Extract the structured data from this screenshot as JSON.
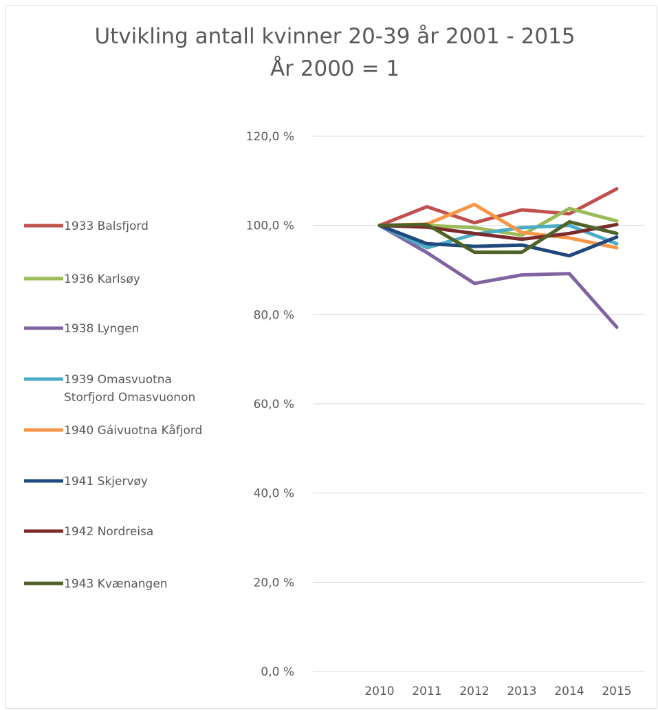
{
  "chart_data": {
    "type": "line",
    "title": "Utvikling antall kvinner 20-39 år 2001 - 2015",
    "subtitle": "År 2000 = 1",
    "categories": [
      "2010",
      "2011",
      "2012",
      "2013",
      "2014",
      "2015"
    ],
    "ylim": [
      0,
      120
    ],
    "yticks": [
      0,
      20,
      40,
      60,
      80,
      100,
      120
    ],
    "ytick_labels": [
      "0,0 %",
      "20,0 %",
      "40,0 %",
      "60,0 %",
      "80,0 %",
      "100,0 %",
      "120,0 %"
    ],
    "grid": true,
    "legend_position": "left",
    "series": [
      {
        "name": "1933 Balsfjord",
        "name_lines": [
          "1933 Balsfjord"
        ],
        "color": "#c0504d",
        "values": [
          100.0,
          104.2,
          100.6,
          103.5,
          102.6,
          108.2
        ]
      },
      {
        "name": "1936 Karlsøy",
        "name_lines": [
          "1936 Karlsøy"
        ],
        "color": "#9bbb59",
        "values": [
          100.0,
          100.0,
          99.5,
          97.8,
          103.8,
          101.0
        ]
      },
      {
        "name": "1938 Lyngen",
        "name_lines": [
          "1938 Lyngen"
        ],
        "color": "#8064a2",
        "values": [
          100.0,
          93.9,
          87.0,
          88.9,
          89.2,
          77.2
        ]
      },
      {
        "name": "1939 Omasvuotna Storfjord Omasvuonon",
        "name_lines": [
          "1939 Omasvuotna",
          "Storfjord Omasvuonon"
        ],
        "color": "#4bacc6",
        "values": [
          100.0,
          95.0,
          98.0,
          99.5,
          100.0,
          95.9
        ]
      },
      {
        "name": "1940 Gáivuotna Kåfjord",
        "name_lines": [
          "1940 Gáivuotna Kåfjord"
        ],
        "color": "#f79646",
        "values": [
          100.0,
          100.3,
          104.7,
          98.4,
          97.2,
          95.0
        ]
      },
      {
        "name": "1941 Skjervøy",
        "name_lines": [
          "1941 Skjervøy"
        ],
        "color": "#1f497d",
        "values": [
          100.0,
          95.9,
          95.3,
          95.6,
          93.2,
          97.4
        ]
      },
      {
        "name": "1942 Nordreisa",
        "name_lines": [
          "1942 Nordreisa"
        ],
        "color": "#7b2c2a",
        "values": [
          100.0,
          99.6,
          98.2,
          96.9,
          98.2,
          100.2
        ]
      },
      {
        "name": "1943 Kvænangen",
        "name_lines": [
          "1943 Kvænangen"
        ],
        "color": "#4f6228",
        "values": [
          100.0,
          100.2,
          94.0,
          94.0,
          100.8,
          98.2
        ]
      }
    ]
  }
}
